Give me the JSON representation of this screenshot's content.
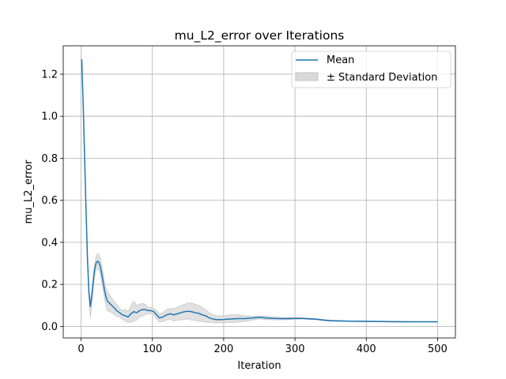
{
  "chart_data": {
    "type": "line",
    "title": "mu_L2_error over Iterations",
    "xlabel": "Iteration",
    "ylabel": "mu_L2_error",
    "xlim": [
      -25,
      525
    ],
    "ylim": [
      -0.055,
      1.335
    ],
    "xticks": [
      0,
      100,
      200,
      300,
      400,
      500
    ],
    "yticks": [
      0.0,
      0.2,
      0.4,
      0.6,
      0.8,
      1.0,
      1.2
    ],
    "grid": true,
    "legend_position": "top-right",
    "legend": [
      "Mean",
      "± Standard Deviation"
    ],
    "colors": {
      "mean": "#1f77b4",
      "band_fill": "#d9d9d9",
      "band_edge": "#bdbdbd",
      "grid": "#b0b0b0"
    },
    "series": [
      {
        "name": "Mean",
        "x": [
          1,
          3,
          5,
          7,
          9,
          11,
          13,
          15,
          17,
          19,
          21,
          23,
          25,
          27,
          29,
          31,
          33,
          35,
          37,
          40,
          43,
          46,
          50,
          54,
          58,
          62,
          66,
          70,
          74,
          78,
          82,
          86,
          90,
          94,
          98,
          102,
          106,
          110,
          115,
          120,
          125,
          130,
          135,
          140,
          145,
          150,
          155,
          160,
          165,
          170,
          175,
          180,
          185,
          190,
          200,
          210,
          220,
          230,
          240,
          250,
          260,
          270,
          280,
          290,
          300,
          310,
          320,
          330,
          340,
          350,
          375,
          400,
          425,
          450,
          475,
          500
        ],
        "y": [
          1.27,
          1.05,
          0.8,
          0.55,
          0.32,
          0.16,
          0.095,
          0.14,
          0.21,
          0.27,
          0.3,
          0.31,
          0.305,
          0.285,
          0.25,
          0.21,
          0.17,
          0.14,
          0.12,
          0.11,
          0.1,
          0.09,
          0.075,
          0.065,
          0.055,
          0.05,
          0.045,
          0.06,
          0.07,
          0.065,
          0.075,
          0.08,
          0.08,
          0.075,
          0.075,
          0.07,
          0.055,
          0.04,
          0.045,
          0.055,
          0.06,
          0.055,
          0.06,
          0.065,
          0.07,
          0.072,
          0.07,
          0.065,
          0.062,
          0.055,
          0.05,
          0.04,
          0.035,
          0.032,
          0.033,
          0.035,
          0.037,
          0.037,
          0.04,
          0.043,
          0.04,
          0.038,
          0.037,
          0.037,
          0.038,
          0.038,
          0.036,
          0.034,
          0.03,
          0.027,
          0.025,
          0.024,
          0.023,
          0.022,
          0.022,
          0.022
        ]
      },
      {
        "name": "± Standard Deviation",
        "x": [
          1,
          3,
          5,
          7,
          9,
          11,
          13,
          15,
          17,
          19,
          21,
          23,
          25,
          27,
          29,
          31,
          33,
          35,
          37,
          40,
          43,
          46,
          50,
          54,
          58,
          62,
          66,
          70,
          74,
          78,
          82,
          86,
          90,
          94,
          98,
          102,
          106,
          110,
          115,
          120,
          125,
          130,
          135,
          140,
          145,
          150,
          155,
          160,
          165,
          170,
          175,
          180,
          185,
          190,
          200,
          210,
          220,
          230,
          240,
          250,
          260,
          270,
          280,
          290,
          300,
          310,
          320,
          330,
          340,
          350,
          375,
          400,
          425,
          450,
          475,
          500
        ],
        "upper": [
          1.275,
          1.055,
          0.81,
          0.56,
          0.335,
          0.18,
          0.12,
          0.17,
          0.24,
          0.3,
          0.33,
          0.345,
          0.345,
          0.325,
          0.29,
          0.25,
          0.21,
          0.18,
          0.165,
          0.15,
          0.135,
          0.12,
          0.105,
          0.085,
          0.075,
          0.08,
          0.07,
          0.1,
          0.12,
          0.1,
          0.105,
          0.11,
          0.105,
          0.09,
          0.09,
          0.085,
          0.075,
          0.06,
          0.065,
          0.08,
          0.085,
          0.085,
          0.09,
          0.1,
          0.105,
          0.11,
          0.112,
          0.105,
          0.1,
          0.09,
          0.08,
          0.065,
          0.055,
          0.05,
          0.05,
          0.055,
          0.055,
          0.05,
          0.048,
          0.05,
          0.048,
          0.045,
          0.043,
          0.042,
          0.042,
          0.041,
          0.039,
          0.037,
          0.033,
          0.03,
          0.027,
          0.026,
          0.025,
          0.024,
          0.023,
          0.023
        ],
        "lower": [
          1.265,
          1.045,
          0.79,
          0.54,
          0.305,
          0.14,
          0.04,
          0.11,
          0.18,
          0.24,
          0.27,
          0.275,
          0.265,
          0.245,
          0.21,
          0.17,
          0.13,
          0.1,
          0.075,
          0.07,
          0.065,
          0.06,
          0.045,
          0.045,
          0.035,
          0.025,
          0.02,
          0.02,
          0.025,
          0.03,
          0.045,
          0.05,
          0.055,
          0.06,
          0.06,
          0.055,
          0.035,
          0.02,
          0.025,
          0.03,
          0.035,
          0.025,
          0.03,
          0.03,
          0.035,
          0.035,
          0.03,
          0.028,
          0.025,
          0.022,
          0.02,
          0.018,
          0.017,
          0.016,
          0.018,
          0.018,
          0.02,
          0.024,
          0.03,
          0.036,
          0.032,
          0.031,
          0.031,
          0.032,
          0.034,
          0.035,
          0.033,
          0.031,
          0.027,
          0.024,
          0.023,
          0.022,
          0.021,
          0.02,
          0.021,
          0.021
        ]
      }
    ]
  }
}
